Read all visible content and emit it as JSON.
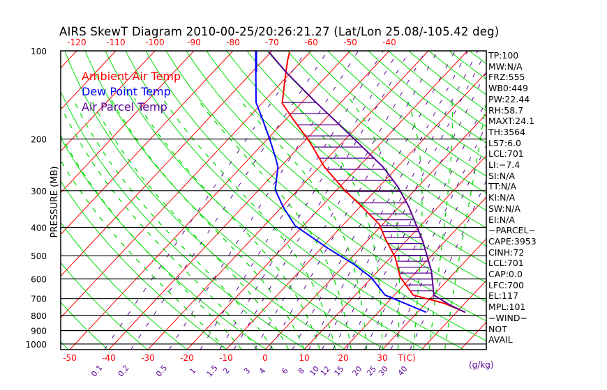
{
  "title": "AIRS SkewT Diagram 2010-00-25/20:26:21.27 (Lat/Lon 25.08/-105.42 deg)",
  "colors": {
    "ambient": "#ff0000",
    "dewpoint": "#0000ff",
    "parcel": "#5a0096",
    "isotherm": "#ff0000",
    "dry_adiabat": "#00dd00",
    "moist_adiabat": "#00dd00",
    "mixing_ratio": "#5a0096",
    "isobar": "#000000"
  },
  "chart_data": {
    "type": "line",
    "subtype": "skew-T log-P diagram",
    "title": "AIRS SkewT Diagram 2010-00-25/20:26:21.27 (Lat/Lon 25.08/-105.42 deg)",
    "ylabel": "PRESSURE (MB)",
    "xlabel": "T(C)",
    "mixing_ratio_unit": "(g/kg)",
    "ylim": [
      1045,
      100
    ],
    "y_scale": "log",
    "pressure_ticks": [
      100,
      200,
      300,
      400,
      500,
      600,
      700,
      800,
      900,
      1000
    ],
    "top_temp_ticks": [
      -120,
      -110,
      -100,
      -90,
      -80,
      -70,
      -60,
      -50,
      -40
    ],
    "bottom_temp_ticks": [
      -50,
      -40,
      -30,
      -20,
      -10,
      0,
      10,
      20,
      30
    ],
    "mixing_ratio_ticks": [
      "0.1",
      "0.2",
      "0.5",
      "1",
      "1.5",
      "2",
      "3",
      "4",
      "6",
      "8",
      "10",
      "12",
      "15",
      "20",
      "25",
      "30",
      "40"
    ],
    "legend": [
      {
        "name": "Ambient Air Temp",
        "color": "#ff0000"
      },
      {
        "name": "Dew Point Temp",
        "color": "#0000ff"
      },
      {
        "name": "Air Parcel Temp",
        "color": "#5a0096"
      }
    ],
    "legend_position": "top-left",
    "series": [
      {
        "name": "Ambient Air Temp",
        "p": [
          101,
          108,
          124,
          151,
          172,
          206,
          249,
          301,
          332,
          390,
          440,
          506,
          592,
          681,
          727,
          780
        ],
        "T": [
          -65.2,
          -63.7,
          -60.1,
          -54.8,
          -47.9,
          -38.1,
          -28.7,
          -17.5,
          -11.1,
          -1.0,
          4.4,
          11.1,
          17.2,
          24.8,
          34.8,
          42.3
        ]
      },
      {
        "name": "Dew Point Temp",
        "p": [
          101,
          118,
          150,
          163,
          199,
          230,
          249,
          298,
          339,
          395,
          472,
          534,
          592,
          681,
          780
        ],
        "T": [
          -73.8,
          -69.1,
          -61.7,
          -58.1,
          -49.6,
          -43.7,
          -40.6,
          -35.8,
          -29.9,
          -22.1,
          -8.2,
          2.1,
          9.7,
          17.6,
          32.3
        ]
      },
      {
        "name": "Air Parcel Temp",
        "p": [
          101,
          118,
          148,
          176,
          204,
          249,
          290,
          339,
          374,
          447,
          564,
          681,
          735,
          780
        ],
        "T": [
          -70.5,
          -61.4,
          -47.2,
          -36.0,
          -26.5,
          -13.7,
          -5.3,
          2.3,
          6.6,
          14.4,
          23.7,
          30.1,
          36.4,
          42.3
        ]
      }
    ],
    "cape_shading": {
      "p_top": 150,
      "p_bottom": 681
    }
  },
  "indices": [
    "TP:100",
    "MW:N/A",
    "FRZ:555",
    "WB0:449",
    "PW:22.44",
    "RH:58.7",
    "MAXT:24.1",
    "TH:3564",
    "L57:6.0",
    "LCL:701",
    "LI:−7.4",
    "SI:N/A",
    "TT:N/A",
    "KI:N/A",
    "SW:N/A",
    "EI:N/A",
    "−PARCEL−",
    "CAPE:3953",
    "CINH:72",
    "LCL:701",
    "CAP:0.0",
    "LFC:700",
    "EL:117",
    "MPL:101",
    "−WIND−",
    " NOT",
    " AVAIL"
  ]
}
